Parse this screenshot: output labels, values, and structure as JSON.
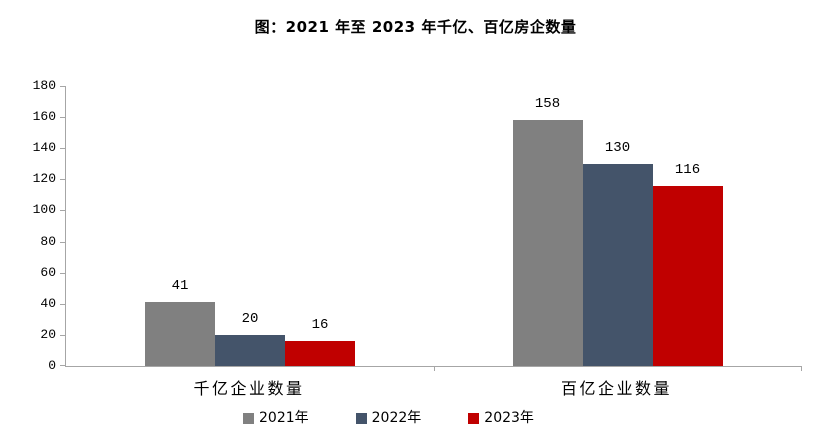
{
  "chart_data": {
    "type": "bar",
    "title": "图：2021 年至 2023 年千亿、百亿房企数量",
    "categories": [
      "千亿企业数量",
      "百亿企业数量"
    ],
    "series": [
      {
        "name": "2021年",
        "color": "#808080",
        "values": [
          41,
          158
        ]
      },
      {
        "name": "2022年",
        "color": "#44546A",
        "values": [
          20,
          130
        ]
      },
      {
        "name": "2023年",
        "color": "#C00000",
        "values": [
          16,
          116
        ]
      }
    ],
    "ylim": [
      0,
      180
    ],
    "yticks": [
      0,
      20,
      40,
      60,
      80,
      100,
      120,
      140,
      160,
      180
    ],
    "grid": false,
    "legend_position": "bottom",
    "data_labels": true,
    "axis_color": "#A6A6A6",
    "text_color": "#000000",
    "background_color": "#FFFFFF"
  }
}
